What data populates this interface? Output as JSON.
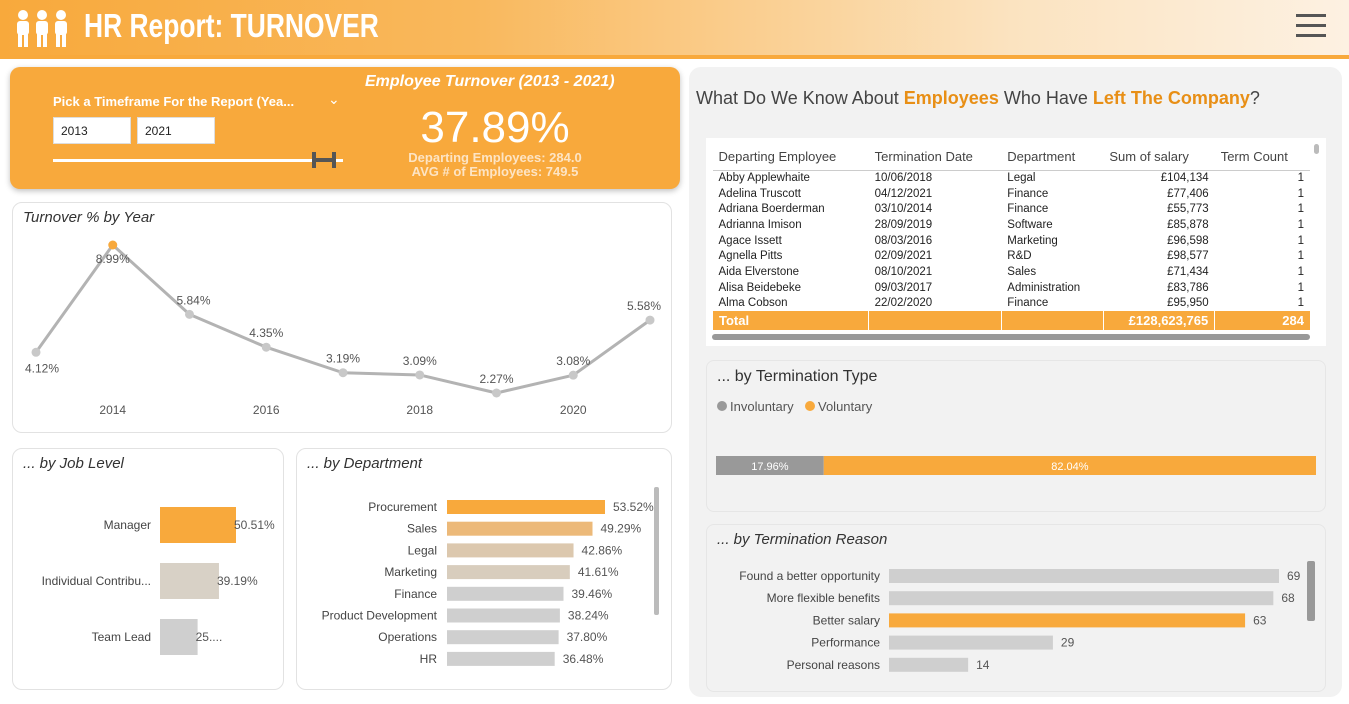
{
  "header": {
    "title": "HR Report: TURNOVER",
    "logo_icon": "people-group-icon",
    "menu_icon": "hamburger-menu-icon",
    "accent": "#f8a93c"
  },
  "kpi": {
    "slicer_label": "Pick a Timeframe For the Report (Yea...",
    "from": "2013",
    "to": "2021",
    "title": "Employee Turnover (2013 - 2021)",
    "value": "37.89%",
    "departing": "Departing Employees: 284.0",
    "avg": "AVG # of Employees: 749.5"
  },
  "turnover_year": {
    "title": "Turnover % by Year",
    "chart_data": {
      "type": "line",
      "x": [
        2013,
        2014,
        2015,
        2016,
        2017,
        2018,
        2019,
        2020,
        2021
      ],
      "values": [
        4.12,
        8.99,
        5.84,
        4.35,
        3.19,
        3.09,
        2.27,
        3.08,
        5.58
      ],
      "labels": [
        "4.12%",
        "8.99%",
        "5.84%",
        "4.35%",
        "3.19%",
        "3.09%",
        "2.27%",
        "3.08%",
        "5.58%"
      ],
      "xticks": [
        "2014",
        "2016",
        "2018",
        "2020"
      ],
      "line_color": "#b3b3b3",
      "highlight_color": "#f8a93c"
    }
  },
  "job_level": {
    "title": "... by Job Level",
    "chart_data": {
      "type": "bar",
      "categories": [
        "Manager",
        "Individual Contribu...",
        "Team Lead"
      ],
      "values": [
        50.51,
        39.19,
        25.0
      ],
      "labels": [
        "50.51%",
        "39.19%",
        "25...."
      ],
      "colors": [
        "#f8a93c",
        "#d8d1c6",
        "#cfcfcf"
      ]
    }
  },
  "department": {
    "title": "... by Department",
    "chart_data": {
      "type": "bar",
      "categories": [
        "Procurement",
        "Sales",
        "Legal",
        "Marketing",
        "Finance",
        "Product Development",
        "Operations",
        "HR"
      ],
      "values": [
        53.52,
        49.29,
        42.86,
        41.61,
        39.46,
        38.24,
        37.8,
        36.48
      ],
      "labels": [
        "53.52%",
        "49.29%",
        "42.86%",
        "41.61%",
        "39.46%",
        "38.24%",
        "37.80%",
        "36.48%"
      ],
      "colors": [
        "#f8a93c",
        "#ecb979",
        "#dcc8ae",
        "#d8cdbd",
        "#cfcfcf",
        "#cfcfcf",
        "#cfcfcf",
        "#cfcfcf"
      ]
    }
  },
  "question": {
    "pre": "What Do We Know About ",
    "hl1": "Employees",
    "mid": " Who Have ",
    "hl2": "Left The Company",
    "post": "?"
  },
  "table": {
    "columns": [
      "Departing Employee",
      "Termination Date",
      "Department",
      "Sum of salary",
      "Term Count"
    ],
    "rows": [
      [
        "Abby Applewhaite",
        "10/06/2018",
        "Legal",
        "£104,134",
        "1"
      ],
      [
        "Adelina Truscott",
        "04/12/2021",
        "Finance",
        "£77,406",
        "1"
      ],
      [
        "Adriana Boerderman",
        "03/10/2014",
        "Finance",
        "£55,773",
        "1"
      ],
      [
        "Adrianna Imison",
        "28/09/2019",
        "Software",
        "£85,878",
        "1"
      ],
      [
        "Agace Issett",
        "08/03/2016",
        "Marketing",
        "£96,598",
        "1"
      ],
      [
        "Agnella Pitts",
        "02/09/2021",
        "R&D",
        "£98,577",
        "1"
      ],
      [
        "Aida Elverstone",
        "08/10/2021",
        "Sales",
        "£71,434",
        "1"
      ],
      [
        "Alisa Beidebeke",
        "09/03/2017",
        "Administration",
        "£83,786",
        "1"
      ],
      [
        "Alma Cobson",
        "22/02/2020",
        "Finance",
        "£95,950",
        "1"
      ]
    ],
    "total": [
      "Total",
      "",
      "",
      "£128,623,765",
      "284"
    ]
  },
  "term_type": {
    "title": "... by Termination Type",
    "legend": [
      "Involuntary",
      "Voluntary"
    ],
    "chart_data": {
      "type": "bar",
      "stacked": true,
      "categories": [
        "Involuntary",
        "Voluntary"
      ],
      "values": [
        17.96,
        82.04
      ],
      "labels": [
        "17.96%",
        "82.04%"
      ],
      "colors": [
        "#999999",
        "#f8a93c"
      ]
    }
  },
  "term_reason": {
    "title": "... by Termination Reason",
    "chart_data": {
      "type": "bar",
      "categories": [
        "Found a better opportunity",
        "More flexible benefits",
        "Better salary",
        "Performance",
        "Personal reasons"
      ],
      "values": [
        69,
        68,
        63,
        29,
        14
      ],
      "labels": [
        "69",
        "68",
        "63",
        "29",
        "14"
      ],
      "colors": [
        "#cfcfcf",
        "#cfcfcf",
        "#f8a93c",
        "#cfcfcf",
        "#cfcfcf"
      ]
    }
  }
}
